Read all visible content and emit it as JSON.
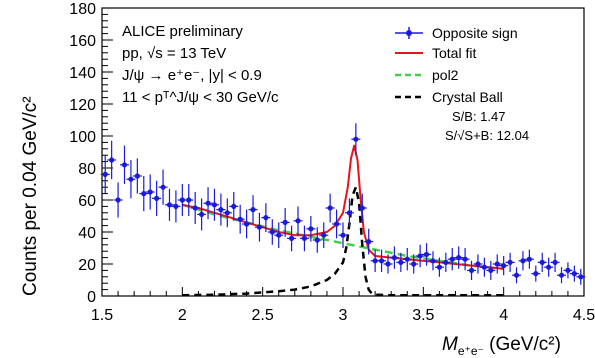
{
  "chart_data": {
    "type": "scatter",
    "xlabel": "M",
    "xlabel_sub": "e⁺e⁻",
    "xlabel_unit": " (GeV/c²)",
    "ylabel": "Counts per 0.04 GeV/c²",
    "xlim": [
      1.5,
      4.5
    ],
    "ylim": [
      0,
      180
    ],
    "xticks": [
      "1.5",
      "2",
      "2.5",
      "3",
      "3.5",
      "4",
      "4.5"
    ],
    "yticks": [
      "0",
      "20",
      "40",
      "60",
      "80",
      "100",
      "120",
      "140",
      "160",
      "180"
    ],
    "annotations": [
      "ALICE preliminary",
      "pp, √s = 13 TeV",
      "J/ψ → e⁺e⁻, |y| < 0.9",
      "11 < pᵀ^J/ψ < 30 GeV/c"
    ],
    "legend": {
      "position": "top-right",
      "entries": [
        {
          "label": "Opposite sign",
          "color": "#1a1adc",
          "style": "marker"
        },
        {
          "label": "Total fit",
          "color": "#e8141c",
          "style": "solid"
        },
        {
          "label": "pol2",
          "color": "#42d04a",
          "style": "dashed"
        },
        {
          "label": "Crystal Ball",
          "color": "#000000",
          "style": "dashed"
        }
      ]
    },
    "stats": {
      "sb": "S/B: 1.47",
      "significance": "S/√S+B: 12.04"
    },
    "series": [
      {
        "name": "Opposite sign",
        "color": "#1a1adc",
        "x": [
          1.52,
          1.56,
          1.6,
          1.64,
          1.68,
          1.72,
          1.76,
          1.8,
          1.84,
          1.88,
          1.92,
          1.96,
          2.0,
          2.04,
          2.08,
          2.12,
          2.16,
          2.2,
          2.24,
          2.28,
          2.32,
          2.36,
          2.4,
          2.44,
          2.48,
          2.52,
          2.56,
          2.6,
          2.64,
          2.68,
          2.72,
          2.76,
          2.8,
          2.84,
          2.88,
          2.92,
          2.96,
          3.0,
          3.04,
          3.08,
          3.12,
          3.16,
          3.2,
          3.24,
          3.28,
          3.32,
          3.36,
          3.4,
          3.44,
          3.48,
          3.52,
          3.56,
          3.6,
          3.64,
          3.68,
          3.72,
          3.76,
          3.8,
          3.84,
          3.88,
          3.92,
          3.96,
          4.0,
          4.04,
          4.08,
          4.12,
          4.16,
          4.2,
          4.24,
          4.28,
          4.32,
          4.36,
          4.4,
          4.44,
          4.48
        ],
        "y": [
          76,
          85,
          60,
          82,
          73,
          75,
          64,
          65,
          61,
          68,
          57,
          56,
          60,
          60,
          55,
          51,
          58,
          57,
          54,
          52,
          56,
          48,
          45,
          54,
          43,
          49,
          40,
          38,
          46,
          36,
          47,
          36,
          42,
          35,
          38,
          55,
          45,
          38,
          52,
          98,
          55,
          34,
          22,
          22,
          20,
          24,
          21,
          23,
          20,
          25,
          26,
          22,
          18,
          21,
          23,
          24,
          23,
          16,
          20,
          18,
          16,
          20,
          19,
          21,
          13,
          22,
          23,
          14,
          21,
          18,
          21,
          13,
          16,
          14,
          12
        ],
        "err": [
          12,
          12,
          11,
          12,
          12,
          11,
          11,
          11,
          11,
          11,
          10,
          10,
          10,
          10,
          10,
          10,
          10,
          10,
          10,
          9,
          9,
          9,
          9,
          9,
          9,
          9,
          8,
          8,
          9,
          8,
          9,
          8,
          8,
          8,
          8,
          9,
          9,
          8,
          9,
          10,
          9,
          8,
          7,
          7,
          6,
          7,
          6,
          7,
          6,
          7,
          7,
          6,
          6,
          6,
          7,
          7,
          7,
          6,
          6,
          6,
          6,
          6,
          6,
          6,
          5,
          6,
          6,
          5,
          6,
          6,
          6,
          5,
          5,
          5,
          5
        ]
      },
      {
        "name": "Total fit",
        "color": "#e8141c",
        "x": [
          2.0,
          2.1,
          2.2,
          2.3,
          2.4,
          2.5,
          2.6,
          2.7,
          2.8,
          2.85,
          2.9,
          2.95,
          3.0,
          3.03,
          3.05,
          3.07,
          3.09,
          3.11,
          3.13,
          3.16,
          3.2,
          3.3,
          3.4,
          3.6,
          3.8,
          4.0
        ],
        "y": [
          57,
          55,
          52,
          49,
          46,
          43,
          40,
          38,
          38,
          39,
          40,
          44,
          52,
          68,
          86,
          94,
          85,
          60,
          40,
          29,
          25,
          24,
          23,
          21,
          19,
          17
        ]
      },
      {
        "name": "pol2",
        "color": "#42d04a",
        "x": [
          2.0,
          2.2,
          2.4,
          2.6,
          2.8,
          3.0,
          3.2,
          3.4,
          3.6,
          3.8,
          4.0
        ],
        "y": [
          57,
          51,
          46,
          41,
          37,
          33,
          29,
          25,
          22,
          19,
          17
        ]
      },
      {
        "name": "Crystal Ball",
        "color": "#000000",
        "x": [
          2.0,
          2.2,
          2.4,
          2.6,
          2.7,
          2.8,
          2.9,
          2.95,
          3.0,
          3.02,
          3.04,
          3.06,
          3.08,
          3.1,
          3.12,
          3.14,
          3.16,
          3.18,
          3.2,
          3.3,
          3.4,
          3.6,
          3.8,
          4.0
        ],
        "y": [
          0.5,
          0.8,
          1.5,
          3,
          4,
          6,
          10,
          14,
          21,
          30,
          45,
          63,
          68,
          58,
          32,
          12,
          4,
          1.5,
          0.8,
          0.5,
          0.5,
          0.5,
          0.5,
          0.5
        ]
      }
    ]
  }
}
